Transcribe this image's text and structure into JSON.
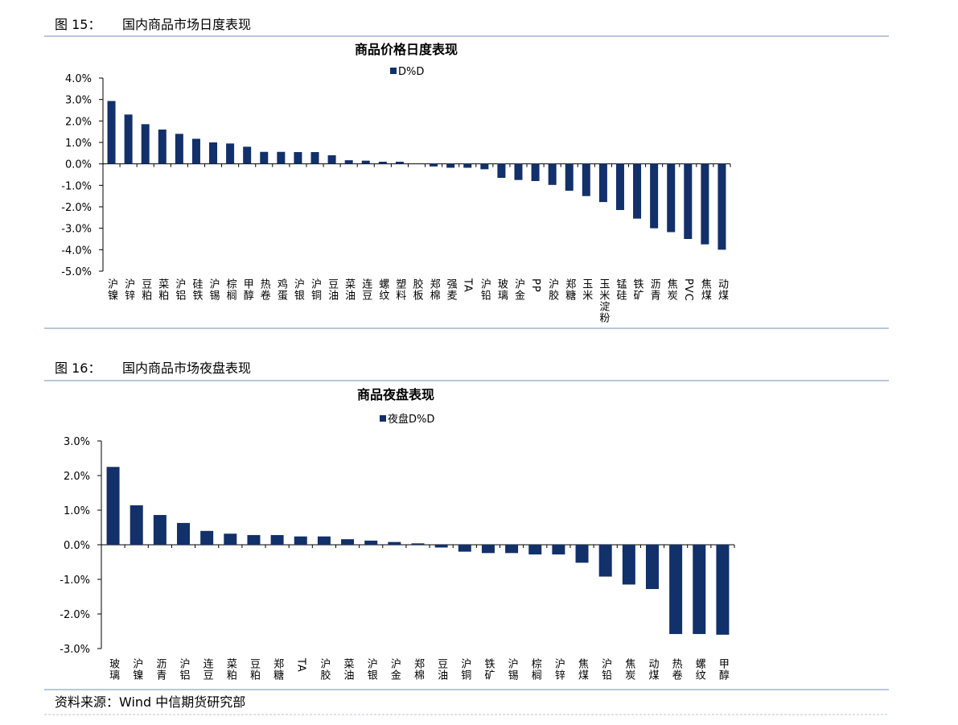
{
  "captions": [
    {
      "label": "图 15：",
      "title": "国内商品市场日度表现"
    },
    {
      "label": "图 16：",
      "title": "国内商品市场夜盘表现"
    }
  ],
  "source": "资料来源：Wind  中信期货研究部",
  "chart_data": [
    {
      "type": "bar",
      "title": "商品价格日度表现",
      "categories": [
        "沪镍",
        "沪锌",
        "豆粕",
        "菜粕",
        "沪铝",
        "硅铁",
        "沪锡",
        "棕榈",
        "甲醇",
        "热卷",
        "鸡蛋",
        "沪银",
        "沪铜",
        "豆油",
        "菜油",
        "连豆",
        "螺纹",
        "塑料",
        "胶板",
        "郑棉",
        "强麦",
        "TA",
        "沪铅",
        "玻璃",
        "沪金",
        "PP",
        "沪胶",
        "郑糖",
        "玉米",
        "玉米淀粉",
        "锰硅",
        "铁矿",
        "沥青",
        "焦炭",
        "PVC",
        "焦煤",
        "动煤"
      ],
      "series": [
        {
          "name": "D%D",
          "color": "#12306a",
          "values": [
            2.93,
            2.3,
            1.85,
            1.6,
            1.4,
            1.17,
            1.0,
            0.95,
            0.8,
            0.56,
            0.56,
            0.55,
            0.55,
            0.4,
            0.17,
            0.15,
            0.1,
            0.1,
            0.02,
            -0.12,
            -0.18,
            -0.18,
            -0.25,
            -0.65,
            -0.75,
            -0.8,
            -0.98,
            -1.25,
            -1.5,
            -1.78,
            -2.15,
            -2.55,
            -3.0,
            -3.18,
            -3.5,
            -3.75,
            -4.0
          ]
        }
      ],
      "ylim": [
        -5,
        4
      ],
      "yticks": [
        {
          "value": -5,
          "label": "-5.0%"
        },
        {
          "value": -4,
          "label": "-4.0%"
        },
        {
          "value": -3,
          "label": "-3.0%"
        },
        {
          "value": -2,
          "label": "-2.0%"
        },
        {
          "value": -1,
          "label": "-1.0%"
        },
        {
          "value": 0,
          "label": "0.0%"
        },
        {
          "value": 1,
          "label": "1.0%"
        },
        {
          "value": 2,
          "label": "2.0%"
        },
        {
          "value": 3,
          "label": "3.0%"
        },
        {
          "value": 4,
          "label": "4.0%"
        }
      ],
      "legend": "top"
    },
    {
      "type": "bar",
      "title": "商品夜盘表现",
      "categories": [
        "玻璃",
        "沪镍",
        "沥青",
        "沪铝",
        "连豆",
        "菜粕",
        "豆粕",
        "郑糖",
        "TA",
        "沪胶",
        "菜油",
        "沪银",
        "沪金",
        "郑棉",
        "豆油",
        "沪铜",
        "铁矿",
        "沪锡",
        "棕榈",
        "沪锌",
        "焦煤",
        "沪铅",
        "焦炭",
        "动煤",
        "热卷",
        "螺纹",
        "甲醇"
      ],
      "series": [
        {
          "name": "夜盘D%D",
          "color": "#12306a",
          "values": [
            2.25,
            1.14,
            0.86,
            0.63,
            0.4,
            0.32,
            0.28,
            0.28,
            0.24,
            0.24,
            0.16,
            0.12,
            0.08,
            0.04,
            -0.08,
            -0.2,
            -0.24,
            -0.24,
            -0.28,
            -0.28,
            -0.52,
            -0.92,
            -1.15,
            -1.28,
            -2.58,
            -2.58,
            -2.6
          ]
        }
      ],
      "ylim": [
        -3,
        3
      ],
      "yticks": [
        {
          "value": -3,
          "label": "-3.0%"
        },
        {
          "value": -2,
          "label": "-2.0%"
        },
        {
          "value": -1,
          "label": "-1.0%"
        },
        {
          "value": 0,
          "label": "0.0%"
        },
        {
          "value": 1,
          "label": "1.0%"
        },
        {
          "value": 2,
          "label": "2.0%"
        },
        {
          "value": 3,
          "label": "3.0%"
        }
      ],
      "legend": "top"
    }
  ]
}
